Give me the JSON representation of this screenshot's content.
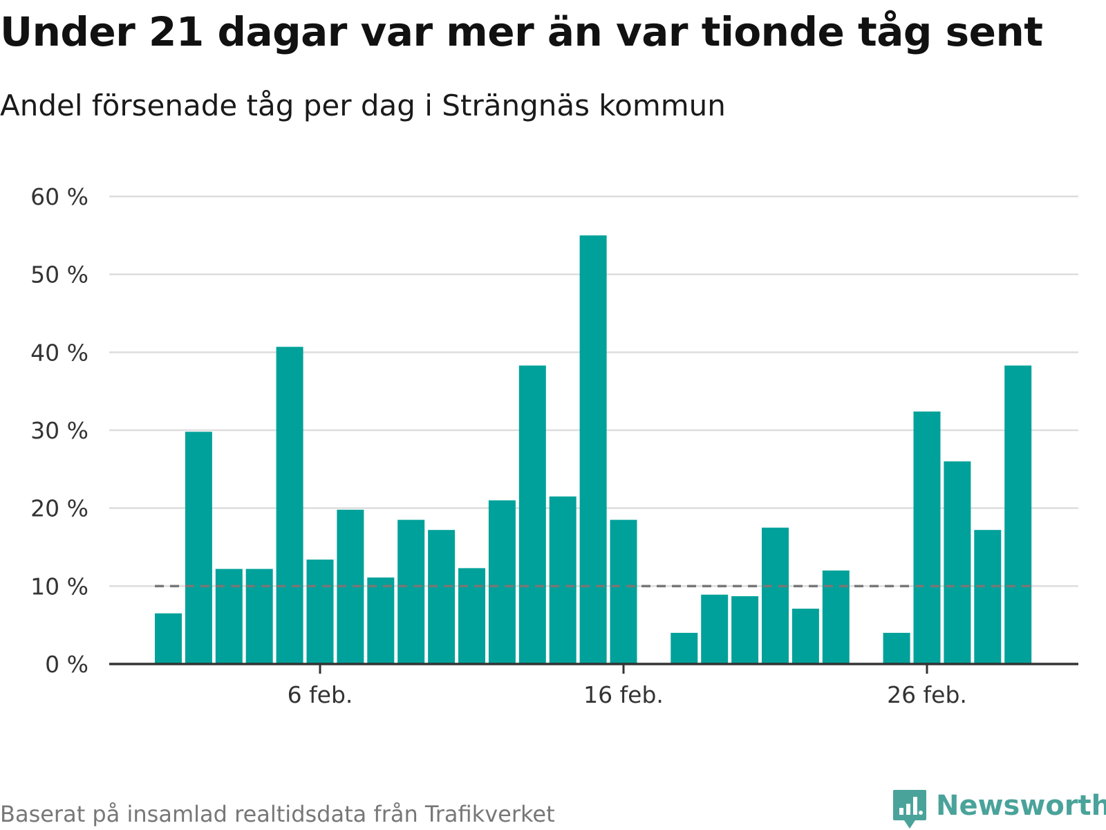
{
  "title": "Under 21 dagar var mer än var tionde tåg sent",
  "subtitle": "Andel försenade tåg per dag i Strängnäs kommun",
  "footnote": "Baserat på insamlad realtidsdata från Trafikverket",
  "brand": "Newsworthy",
  "colors": {
    "bar": "#00a19a",
    "reference_line": "#777777",
    "grid": "#dddddd",
    "axis": "#333333",
    "brand": "#4aa39a"
  },
  "chart_data": {
    "type": "bar",
    "title": "Under 21 dagar var mer än var tionde tåg sent",
    "subtitle": "Andel försenade tåg per dag i Strängnäs kommun",
    "xlabel": "",
    "ylabel": "",
    "x_axis": "date",
    "x_range": [
      1,
      29
    ],
    "x_ticks": [
      {
        "day": 6,
        "label": "6 feb."
      },
      {
        "day": 16,
        "label": "16 feb."
      },
      {
        "day": 26,
        "label": "26 feb."
      }
    ],
    "ylim": [
      0,
      60
    ],
    "y_ticks": [
      {
        "value": 0,
        "label": "0 %"
      },
      {
        "value": 10,
        "label": "10 %"
      },
      {
        "value": 20,
        "label": "20 %"
      },
      {
        "value": 30,
        "label": "30 %"
      },
      {
        "value": 40,
        "label": "40 %"
      },
      {
        "value": 50,
        "label": "50 %"
      },
      {
        "value": 60,
        "label": "60 %"
      }
    ],
    "grid": true,
    "reference_line": {
      "value": 10,
      "style": "dashed",
      "from_day": 1,
      "to_day": 29
    },
    "bars": [
      {
        "day": 1,
        "value": 6.5
      },
      {
        "day": 2,
        "value": 29.8
      },
      {
        "day": 3,
        "value": 12.2
      },
      {
        "day": 4,
        "value": 12.2
      },
      {
        "day": 5,
        "value": 40.7
      },
      {
        "day": 6,
        "value": 13.4
      },
      {
        "day": 7,
        "value": 19.8
      },
      {
        "day": 8,
        "value": 11.1
      },
      {
        "day": 9,
        "value": 18.5
      },
      {
        "day": 10,
        "value": 17.2
      },
      {
        "day": 11,
        "value": 12.3
      },
      {
        "day": 12,
        "value": 21.0
      },
      {
        "day": 13,
        "value": 38.3
      },
      {
        "day": 14,
        "value": 21.5
      },
      {
        "day": 15,
        "value": 55.0
      },
      {
        "day": 16,
        "value": 18.5
      },
      {
        "day": 17,
        "value": 0
      },
      {
        "day": 18,
        "value": 4.0
      },
      {
        "day": 19,
        "value": 8.9
      },
      {
        "day": 20,
        "value": 8.7
      },
      {
        "day": 21,
        "value": 17.5
      },
      {
        "day": 22,
        "value": 7.1
      },
      {
        "day": 23,
        "value": 12.0
      },
      {
        "day": 24,
        "value": 0
      },
      {
        "day": 25,
        "value": 4.0
      },
      {
        "day": 26,
        "value": 32.4
      },
      {
        "day": 27,
        "value": 26.0
      },
      {
        "day": 28,
        "value": 17.2
      },
      {
        "day": 29,
        "value": 38.3
      }
    ]
  }
}
